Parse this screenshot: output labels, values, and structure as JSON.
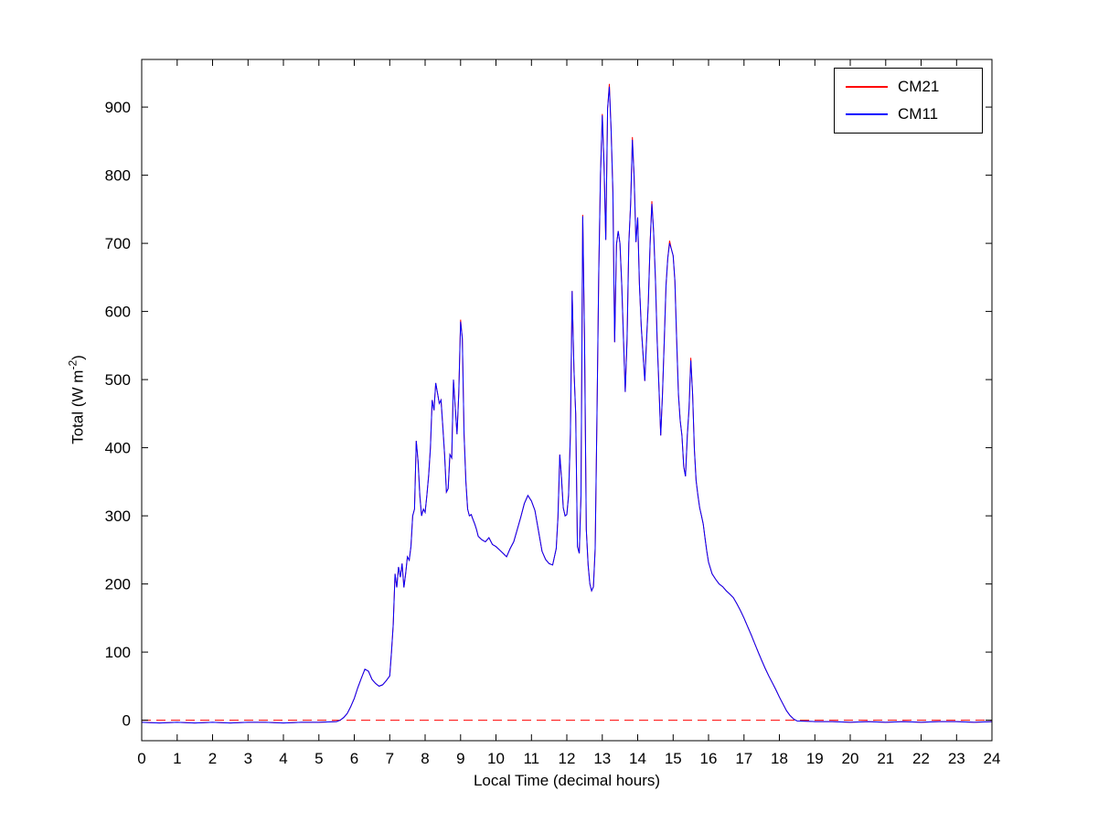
{
  "axes": {
    "xlabel": "Local Time (decimal hours)",
    "ylabel_prefix": "Total (W m",
    "ylabel_sup": "-2",
    "ylabel_suffix": ")"
  },
  "legend": {
    "entries": [
      {
        "label": "CM21",
        "color": "#ff0000"
      },
      {
        "label": "CM11",
        "color": "#0000ff"
      }
    ]
  },
  "chart_data": {
    "type": "line",
    "title": "",
    "xlabel": "Local Time (decimal hours)",
    "ylabel": "Total (W m^-2)",
    "xlim": [
      0,
      24
    ],
    "ylim": [
      -30,
      970
    ],
    "xticks": [
      0,
      1,
      2,
      3,
      4,
      5,
      6,
      7,
      8,
      9,
      10,
      11,
      12,
      13,
      14,
      15,
      16,
      17,
      18,
      19,
      20,
      21,
      22,
      23,
      24
    ],
    "yticks": [
      0,
      100,
      200,
      300,
      400,
      500,
      600,
      700,
      800,
      900
    ],
    "grid": false,
    "legend_position": "top-right",
    "zero_line": {
      "y": 0,
      "color": "#ff0000",
      "style": "dashed"
    },
    "x": [
      0,
      0.5,
      1,
      1.5,
      2,
      2.5,
      3,
      3.5,
      4,
      4.5,
      5,
      5.5,
      5.6,
      5.7,
      5.8,
      5.9,
      6,
      6.1,
      6.2,
      6.3,
      6.4,
      6.5,
      6.6,
      6.7,
      6.8,
      6.9,
      7,
      7.05,
      7.1,
      7.15,
      7.2,
      7.25,
      7.3,
      7.35,
      7.4,
      7.45,
      7.5,
      7.55,
      7.6,
      7.65,
      7.7,
      7.75,
      7.8,
      7.85,
      7.9,
      7.95,
      8,
      8.05,
      8.1,
      8.15,
      8.2,
      8.25,
      8.3,
      8.35,
      8.4,
      8.45,
      8.5,
      8.55,
      8.6,
      8.65,
      8.7,
      8.75,
      8.8,
      8.85,
      8.9,
      8.95,
      9,
      9.05,
      9.1,
      9.15,
      9.2,
      9.25,
      9.3,
      9.35,
      9.4,
      9.45,
      9.5,
      9.6,
      9.7,
      9.8,
      9.9,
      10,
      10.1,
      10.2,
      10.3,
      10.4,
      10.5,
      10.6,
      10.7,
      10.8,
      10.9,
      11,
      11.1,
      11.2,
      11.3,
      11.4,
      11.5,
      11.6,
      11.7,
      11.75,
      11.8,
      11.85,
      11.9,
      11.95,
      12,
      12.05,
      12.1,
      12.15,
      12.2,
      12.25,
      12.3,
      12.35,
      12.4,
      12.45,
      12.5,
      12.55,
      12.6,
      12.65,
      12.7,
      12.75,
      12.8,
      12.85,
      12.9,
      12.95,
      13,
      13.05,
      13.1,
      13.15,
      13.2,
      13.25,
      13.3,
      13.35,
      13.4,
      13.45,
      13.5,
      13.55,
      13.6,
      13.65,
      13.7,
      13.75,
      13.8,
      13.85,
      13.9,
      13.95,
      14,
      14.05,
      14.1,
      14.15,
      14.2,
      14.25,
      14.3,
      14.35,
      14.4,
      14.45,
      14.5,
      14.55,
      14.6,
      14.65,
      14.7,
      14.75,
      14.8,
      14.85,
      14.9,
      14.95,
      15,
      15.05,
      15.1,
      15.15,
      15.2,
      15.25,
      15.3,
      15.35,
      15.4,
      15.45,
      15.5,
      15.55,
      15.6,
      15.65,
      15.7,
      15.75,
      15.8,
      15.85,
      15.9,
      15.95,
      16,
      16.1,
      16.2,
      16.3,
      16.4,
      16.5,
      16.6,
      16.7,
      16.8,
      16.9,
      17,
      17.1,
      17.2,
      17.3,
      17.4,
      17.5,
      17.6,
      17.7,
      17.8,
      17.9,
      18,
      18.1,
      18.2,
      18.3,
      18.4,
      18.5,
      19,
      19.5,
      20,
      20.5,
      21,
      21.5,
      22,
      22.5,
      23,
      23.5,
      24
    ],
    "series": [
      {
        "name": "CM21",
        "color": "#ff0000",
        "values": [
          -3,
          -4,
          -3,
          -4,
          -3,
          -4,
          -3,
          -3,
          -4,
          -3,
          -3,
          -2,
          0,
          4,
          10,
          20,
          32,
          48,
          62,
          75,
          72,
          60,
          54,
          50,
          52,
          58,
          65,
          100,
          140,
          215,
          195,
          225,
          210,
          230,
          195,
          215,
          240,
          235,
          255,
          300,
          310,
          410,
          380,
          330,
          300,
          310,
          305,
          330,
          360,
          400,
          470,
          455,
          495,
          480,
          465,
          470,
          430,
          390,
          335,
          340,
          390,
          385,
          500,
          460,
          420,
          480,
          588,
          560,
          420,
          350,
          310,
          300,
          302,
          295,
          288,
          280,
          270,
          265,
          262,
          268,
          258,
          255,
          250,
          245,
          240,
          252,
          262,
          280,
          298,
          318,
          330,
          322,
          308,
          278,
          248,
          236,
          230,
          228,
          252,
          298,
          390,
          355,
          312,
          300,
          302,
          330,
          420,
          630,
          515,
          450,
          255,
          245,
          330,
          742,
          555,
          280,
          228,
          200,
          190,
          196,
          252,
          440,
          655,
          800,
          890,
          815,
          705,
          898,
          934,
          868,
          775,
          555,
          698,
          718,
          700,
          638,
          558,
          482,
          560,
          700,
          758,
          856,
          798,
          702,
          738,
          640,
          578,
          538,
          498,
          558,
          612,
          700,
          762,
          718,
          648,
          558,
          488,
          418,
          478,
          558,
          638,
          678,
          704,
          692,
          682,
          645,
          560,
          478,
          440,
          418,
          372,
          358,
          418,
          458,
          532,
          478,
          398,
          352,
          330,
          312,
          300,
          288,
          268,
          248,
          232,
          215,
          207,
          200,
          196,
          190,
          185,
          180,
          171,
          161,
          150,
          138,
          126,
          113,
          100,
          88,
          76,
          65,
          55,
          45,
          34,
          24,
          14,
          7,
          2,
          -1,
          -2,
          -2,
          -3,
          -2,
          -3,
          -2,
          -3,
          -2,
          -2,
          -3,
          -2
        ]
      },
      {
        "name": "CM11",
        "color": "#0000ff",
        "values": [
          -3,
          -4,
          -3,
          -4,
          -3,
          -4,
          -3,
          -3,
          -4,
          -3,
          -3,
          -2,
          0,
          4,
          10,
          20,
          32,
          48,
          62,
          75,
          72,
          60,
          54,
          50,
          52,
          58,
          65,
          100,
          140,
          215,
          195,
          225,
          210,
          230,
          195,
          215,
          240,
          235,
          255,
          300,
          310,
          410,
          380,
          330,
          300,
          310,
          305,
          330,
          360,
          400,
          470,
          455,
          495,
          480,
          465,
          470,
          430,
          390,
          335,
          340,
          390,
          385,
          500,
          460,
          420,
          480,
          585,
          560,
          420,
          350,
          310,
          300,
          302,
          295,
          288,
          280,
          270,
          265,
          262,
          268,
          258,
          255,
          250,
          245,
          240,
          252,
          262,
          280,
          298,
          318,
          330,
          322,
          308,
          278,
          248,
          236,
          230,
          228,
          252,
          298,
          390,
          355,
          312,
          300,
          302,
          330,
          420,
          630,
          515,
          450,
          255,
          245,
          330,
          740,
          555,
          280,
          228,
          200,
          190,
          196,
          252,
          440,
          655,
          800,
          888,
          815,
          705,
          898,
          930,
          868,
          775,
          555,
          698,
          718,
          700,
          638,
          558,
          482,
          560,
          700,
          758,
          852,
          798,
          702,
          738,
          640,
          578,
          538,
          498,
          558,
          612,
          700,
          758,
          718,
          648,
          558,
          488,
          418,
          478,
          558,
          638,
          678,
          700,
          692,
          682,
          645,
          560,
          478,
          440,
          418,
          372,
          358,
          418,
          458,
          528,
          478,
          398,
          352,
          330,
          312,
          300,
          288,
          268,
          248,
          232,
          215,
          207,
          200,
          196,
          190,
          185,
          180,
          171,
          161,
          150,
          138,
          126,
          113,
          100,
          88,
          76,
          65,
          55,
          45,
          34,
          24,
          14,
          7,
          2,
          -1,
          -2,
          -2,
          -3,
          -2,
          -3,
          -2,
          -3,
          -2,
          -2,
          -3,
          -2
        ]
      }
    ]
  }
}
